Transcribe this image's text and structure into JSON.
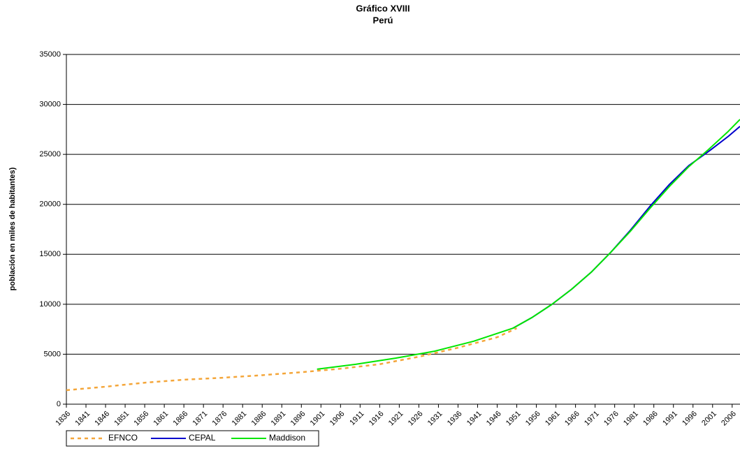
{
  "chart_data": {
    "type": "line",
    "title": "Gráfico XVIII",
    "subtitle": "Perú",
    "y_label": "población en miles de habitantes)",
    "xlim": [
      1836,
      2008
    ],
    "xticks": [
      1836,
      1841,
      1846,
      1851,
      1856,
      1861,
      1866,
      1871,
      1876,
      1881,
      1886,
      1891,
      1896,
      1901,
      1906,
      1911,
      1916,
      1921,
      1926,
      1931,
      1936,
      1941,
      1946,
      1951,
      1956,
      1961,
      1966,
      1971,
      1976,
      1981,
      1986,
      1991,
      1996,
      2001,
      2006
    ],
    "ylim": [
      0,
      35000
    ],
    "yticks": [
      0,
      5000,
      10000,
      15000,
      20000,
      25000,
      30000,
      35000
    ],
    "grid": true,
    "legend": "bottom-left",
    "series": [
      {
        "name": "EFNCO",
        "color": "#f4a63a",
        "dash": true,
        "x": [
          1836,
          1846,
          1856,
          1866,
          1876,
          1886,
          1896,
          1906,
          1916,
          1926,
          1936,
          1946,
          1951
        ],
        "values": [
          1400,
          1750,
          2150,
          2450,
          2650,
          2900,
          3200,
          3550,
          4000,
          4750,
          5650,
          6700,
          7600
        ]
      },
      {
        "name": "CEPAL",
        "color": "#0000cc",
        "x": [
          1950,
          1955,
          1960,
          1965,
          1970,
          1975,
          1980,
          1985,
          1990,
          1995,
          2000,
          2005,
          2008
        ],
        "values": [
          7600,
          8700,
          10000,
          11500,
          13200,
          15200,
          17400,
          19800,
          22000,
          23900,
          25300,
          26800,
          27800
        ]
      },
      {
        "name": "Maddison",
        "color": "#00e600",
        "x": [
          1900,
          1910,
          1920,
          1930,
          1940,
          1950,
          1955,
          1960,
          1965,
          1970,
          1975,
          1980,
          1985,
          1990,
          1995,
          2000,
          2005,
          2008
        ],
        "values": [
          3500,
          4000,
          4600,
          5300,
          6300,
          7600,
          8700,
          10000,
          11500,
          13200,
          15200,
          17300,
          19600,
          21800,
          23800,
          25500,
          27300,
          28500
        ]
      }
    ]
  }
}
